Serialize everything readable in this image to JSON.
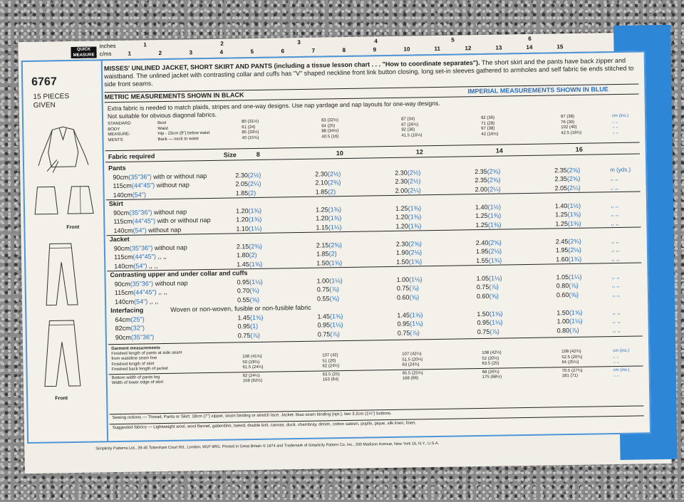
{
  "ruler": {
    "tag": "QUICK MEASURE",
    "unit_in": "inches",
    "unit_cm": "c/ms",
    "inch_marks": [
      "1",
      "2",
      "3",
      "4",
      "5",
      "6"
    ],
    "cm_marks": [
      "1",
      "2",
      "3",
      "4",
      "5",
      "6",
      "7",
      "8",
      "9",
      "10",
      "11",
      "12",
      "13",
      "14",
      "15"
    ]
  },
  "pattern": {
    "number": "6767",
    "pieces": "15 PIECES",
    "given": "GIVEN",
    "front_label_1": "Front",
    "front_label_2": "Front"
  },
  "header": {
    "title_bold": "MISSES' UNLINED JACKET, SHORT SKIRT AND PANTS (including a tissue lesson chart . . . \"How to coordinate separates\").",
    "title_rest": " The short skirt and the pants have back zipper and waistband. The unlined jacket with contrasting collar and cuffs has \"V\" shaped neckline front link button closing, long set-in sleeves gathered to armholes and self fabric tie ends stitched to side front seams.",
    "metric": "METRIC MEASUREMENTS SHOWN IN BLACK",
    "imperial": "IMPERIAL MEASUREMENTS SHOWN IN BLUE",
    "note1": "Extra fabric is needed to match plaids, stripes and one-way designs. Use nap yardage and nap layouts for one-way designs.",
    "note2": "Not suitable for obvious diagonal fabrics."
  },
  "body": {
    "label": [
      "STANDARD",
      "BODY",
      "MEASURE-",
      "MENTS"
    ],
    "rows": [
      "Bust",
      "Waist",
      "Hip - 23cm (9\") below waist",
      "Back — neck to waist"
    ],
    "units": "cm (ins.)",
    "cols": [
      [
        "80 (31½)",
        "61 (24)",
        "85 (33½)",
        "40 (15¾)"
      ],
      [
        "83 (32½)",
        "64 (25)",
        "88 (34½)",
        "40.5 (16)"
      ],
      [
        "87 (34)",
        "67 (26½)",
        "92 (36)",
        "41.5 (16¼)"
      ],
      [
        "92 (36)",
        "71 (28)",
        "97 (38)",
        "42 (16½)"
      ],
      [
        "97 (38)",
        "76 (30)",
        "102 (40)",
        "42.5 (16¾)"
      ]
    ]
  },
  "fabric": {
    "head": "Fabric required",
    "size_label": "Size",
    "sizes": [
      "8",
      "10",
      "12",
      "14",
      "16"
    ],
    "unit": "m (yds.)",
    "sections": [
      {
        "name": "Pants",
        "rows": [
          {
            "w": "90cm",
            "wi": "(35\"36\")",
            "d": "with or without nap",
            "v": [
              [
                "2.30",
                "(2½)"
              ],
              [
                "2.30",
                "(2½)"
              ],
              [
                "2.30",
                "(2½)"
              ],
              [
                "2.35",
                "(2⅝)"
              ],
              [
                "2.35",
                "(2⅝)"
              ]
            ]
          },
          {
            "w": "115cm",
            "wi": "(44\"45\")",
            "d": "without nap",
            "v": [
              [
                "2.05",
                "(2¼)"
              ],
              [
                "2.10",
                "(2⅜)"
              ],
              [
                "2.30",
                "(2½)"
              ],
              [
                "2.35",
                "(2⅝)"
              ],
              [
                "2.35",
                "(2⅝)"
              ]
            ]
          },
          {
            "w": "140cm",
            "wi": "(54\")",
            "d": "",
            "v": [
              [
                "1.85",
                "(2)"
              ],
              [
                "1.85",
                "(2)"
              ],
              [
                "2.00",
                "(2¼)"
              ],
              [
                "2.00",
                "(2¼)"
              ],
              [
                "2.05",
                "(2¼)"
              ]
            ]
          }
        ]
      },
      {
        "name": "Skirt",
        "rows": [
          {
            "w": "90cm",
            "wi": "(35\"36\")",
            "d": "without nap",
            "v": [
              [
                "1.20",
                "(1⅜)"
              ],
              [
                "1.25",
                "(1⅜)"
              ],
              [
                "1.25",
                "(1⅜)"
              ],
              [
                "1.40",
                "(1½)"
              ],
              [
                "1.40",
                "(1½)"
              ]
            ]
          },
          {
            "w": "115cm",
            "wi": "(44\"45\")",
            "d": "with or without nap",
            "v": [
              [
                "1.20",
                "(1⅜)"
              ],
              [
                "1.20",
                "(1⅜)"
              ],
              [
                "1.20",
                "(1⅜)"
              ],
              [
                "1.25",
                "(1⅜)"
              ],
              [
                "1.25",
                "(1⅜)"
              ]
            ]
          },
          {
            "w": "140cm",
            "wi": "(54\")",
            "d": "without nap",
            "v": [
              [
                "1.10",
                "(1¼)"
              ],
              [
                "1.15",
                "(1¼)"
              ],
              [
                "1.20",
                "(1⅜)"
              ],
              [
                "1.25",
                "(1⅜)"
              ],
              [
                "1.25",
                "(1⅜)"
              ]
            ]
          }
        ]
      },
      {
        "name": "Jacket",
        "rows": [
          {
            "w": "90cm",
            "wi": "(35\"36\")",
            "d": "without nap",
            "v": [
              [
                "2.15",
                "(2⅜)"
              ],
              [
                "2.15",
                "(2⅜)"
              ],
              [
                "2.30",
                "(2⅝)"
              ],
              [
                "2.40",
                "(2⅝)"
              ],
              [
                "2.45",
                "(2¾)"
              ]
            ]
          },
          {
            "w": "115cm",
            "wi": "(44\"45\")",
            "d": ",,  ,,",
            "v": [
              [
                "1.80",
                "(2)"
              ],
              [
                "1.85",
                "(2)"
              ],
              [
                "1.90",
                "(2⅛)"
              ],
              [
                "1.95",
                "(2⅛)"
              ],
              [
                "1.95",
                "(2⅛)"
              ]
            ]
          },
          {
            "w": "140cm",
            "wi": "(54\")",
            "d": ",,  ,,",
            "v": [
              [
                "1.45",
                "(1⅝)"
              ],
              [
                "1.50",
                "(1⅝)"
              ],
              [
                "1.50",
                "(1⅝)"
              ],
              [
                "1.55",
                "(1¾)"
              ],
              [
                "1.60",
                "(1¾)"
              ]
            ]
          }
        ]
      },
      {
        "name": "Contrasting upper and under collar and cuffs",
        "rows": [
          {
            "w": "90cm",
            "wi": "(35\"36\")",
            "d": "without nap",
            "v": [
              [
                "0.95",
                "(1⅛)"
              ],
              [
                "1.00",
                "(1⅛)"
              ],
              [
                "1.00",
                "(1⅛)"
              ],
              [
                "1.05",
                "(1⅛)"
              ],
              [
                "1.05",
                "(1¼)"
              ]
            ]
          },
          {
            "w": "115cm",
            "wi": "(44\"45\")",
            "d": ",,  ,,",
            "v": [
              [
                "0.70",
                "(¾)"
              ],
              [
                "0.75",
                "(⅞)"
              ],
              [
                "0.75",
                "(⅞)"
              ],
              [
                "0.75",
                "(⅞)"
              ],
              [
                "0.80",
                "(⅞)"
              ]
            ]
          },
          {
            "w": "140cm",
            "wi": "(54\")",
            "d": ",,  ,,",
            "v": [
              [
                "0.55",
                "(⅝)"
              ],
              [
                "0.55",
                "(⅝)"
              ],
              [
                "0.60",
                "(⅝)"
              ],
              [
                "0.60",
                "(⅝)"
              ],
              [
                "0.60",
                "(⅝)"
              ]
            ]
          }
        ]
      },
      {
        "name": "Interfacing",
        "extra": "Woven or non-woven, fusible or non-fusible fabric",
        "rows": [
          {
            "w": "64cm",
            "wi": "(25\")",
            "d": "",
            "v": [
              [
                "1.45",
                "(1⅝)"
              ],
              [
                "1.45",
                "(1⅝)"
              ],
              [
                "1.45",
                "(1⅝)"
              ],
              [
                "1.50",
                "(1⅝)"
              ],
              [
                "1.50",
                "(1⅝)"
              ]
            ]
          },
          {
            "w": "82cm",
            "wi": "(32\")",
            "d": "",
            "v": [
              [
                "0.95",
                "(1)"
              ],
              [
                "0.95",
                "(1⅛)"
              ],
              [
                "0.95",
                "(1⅛)"
              ],
              [
                "0.95",
                "(1⅛)"
              ],
              [
                "1.00",
                "(1⅛)"
              ]
            ]
          },
          {
            "w": "90cm",
            "wi": "(35\"36\")",
            "d": "",
            "v": [
              [
                "0.75",
                "(⅞)"
              ],
              [
                "0.75",
                "(⅞)"
              ],
              [
                "0.75",
                "(⅞)"
              ],
              [
                "0.75",
                "(⅞)"
              ],
              [
                "0.80",
                "(⅞)"
              ]
            ]
          }
        ]
      }
    ]
  },
  "garment": {
    "title": "Garment measurements",
    "sub": "Finished length of pants at side seam",
    "rows": [
      {
        "l": "from waistline seam line",
        "v": [
          "106 (41¾)",
          "107 (42)",
          "107 (42¼)",
          "108 (42½)",
          "109 (42¾)"
        ]
      },
      {
        "l": "Finished length of skirt",
        "v": [
          "50 (19¾)",
          "51 (20)",
          "51.5 (20¼)",
          "52 (20½)",
          "52.5 (20¾)"
        ]
      },
      {
        "l": "Finished back length of jacket",
        "v": [
          "61.5 (24¼)",
          "62 (24½)",
          "63 (24¾)",
          "63.5 (25)",
          "64 (25¼)"
        ]
      }
    ],
    "rows2": [
      {
        "l": "Bottom width of pants leg",
        "v": [
          "62 (24½)",
          "63.5 (25)",
          "65.5 (25¾)",
          "68 (26¾)",
          "70.5 (27¾)"
        ]
      },
      {
        "l": "Width of lower edge of skirt",
        "v": [
          "159 (62½)",
          "163 (64)",
          "168 (66)",
          "175 (68½)",
          "181 (71)"
        ]
      }
    ],
    "unit": "cm (ins.)"
  },
  "notions": {
    "sewing": "Sewing notions — Thread. Pants or Skirt: 18cm (7\") zipper, seam binding or stretch lace. Jacket: Bias seam binding (opt.), two 3.2cm (1¼\") buttons.",
    "fabrics": "Suggested fabrics — Lightweight wool, wool flannel, gaberdine, tweed, double knit, canvas, duck, chambray, denim, cotton sateen, poplin, pique, silk linen, linen."
  },
  "footer": "Simplicity Patterns Ltd., 39-45 Tottenham Court Rd., London, W1P 9RG.  Printed in Great Britain © 1974 and Trademark of Simplicity Pattern Co. Inc., 200 Madison Avenue, New York 16, N.Y., U.S.A.",
  "colors": {
    "imperial_blue": "#2a6fc4",
    "border_blue": "#4d95d8",
    "corner_blue": "#2d86d6"
  }
}
